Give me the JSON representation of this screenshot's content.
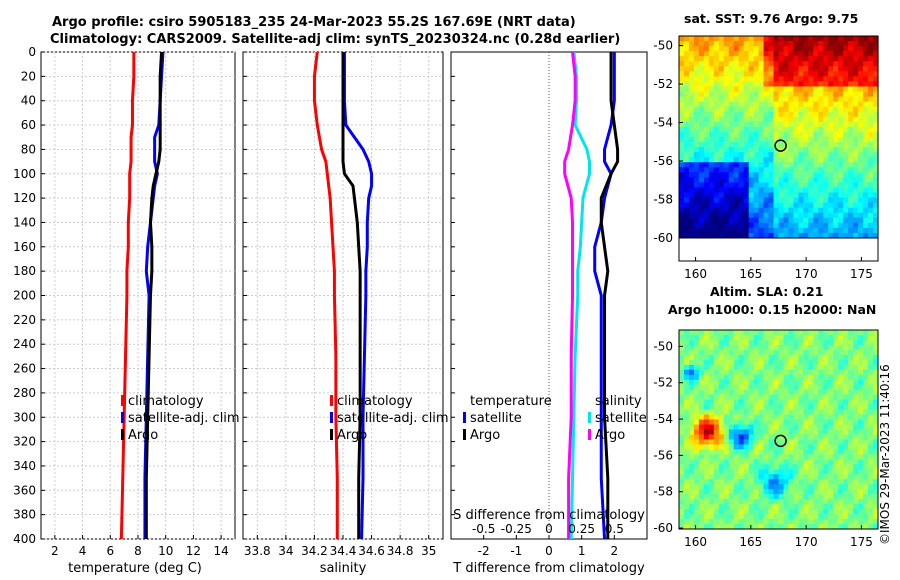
{
  "header": {
    "line1": "Argo profile: csiro 5905183_235 24-Mar-2023 55.2S 167.69E (NRT data)",
    "line2": "Climatology: CARS2009. Satellite-adj clim: synTS_20230324.nc (0.28d earlier)"
  },
  "maps": {
    "sst_title": "sat. SST: 9.76 Argo: 9.75",
    "sla_title1": "Altim. SLA: 0.21",
    "sla_title2": "Argo h1000: 0.15 h2000: NaN",
    "lat_ticks": [
      "-50",
      "-52",
      "-54",
      "-56",
      "-58",
      "-60"
    ],
    "lon_ticks": [
      "160",
      "165",
      "170",
      "175"
    ],
    "float_lon": 167.69,
    "float_lat": -55.2
  },
  "credit": "©IMOS 29-Mar-2023 11:40:16",
  "colors": {
    "climatology": "#ff0000",
    "satellite": "#0000ff",
    "argo": "#000000",
    "sat_diff_T": "#0000ff",
    "sat_diff_S": "#00e5ee",
    "argo_diff_S": "#ff00ff"
  },
  "chart_data": [
    {
      "type": "line",
      "xlabel": "temperature (deg C)",
      "ylabel": "",
      "xlim": [
        1,
        15
      ],
      "ylim": [
        400,
        0
      ],
      "xticks": [
        "2",
        "4",
        "6",
        "8",
        "10",
        "12",
        "14"
      ],
      "yticks": [
        "0",
        "20",
        "40",
        "60",
        "80",
        "100",
        "120",
        "140",
        "160",
        "180",
        "200",
        "220",
        "240",
        "260",
        "280",
        "300",
        "320",
        "340",
        "360",
        "380",
        "400"
      ],
      "grid": true,
      "legend": [
        "climatology",
        "satellite-adj. clim",
        "Argo"
      ],
      "depth": [
        0,
        20,
        40,
        60,
        70,
        80,
        90,
        100,
        110,
        120,
        140,
        160,
        180,
        200,
        250,
        300,
        350,
        400
      ],
      "series": [
        {
          "name": "climatology",
          "values": [
            7.7,
            7.7,
            7.6,
            7.6,
            7.5,
            7.5,
            7.5,
            7.4,
            7.4,
            7.4,
            7.3,
            7.3,
            7.2,
            7.2,
            7.1,
            7.0,
            6.9,
            6.8
          ]
        },
        {
          "name": "satellite-adj. clim",
          "values": [
            9.8,
            9.7,
            9.6,
            9.5,
            9.2,
            9.2,
            9.2,
            9.4,
            9.2,
            9.1,
            8.9,
            8.7,
            8.6,
            8.8,
            8.7,
            8.6,
            8.5,
            8.5
          ]
        },
        {
          "name": "Argo",
          "values": [
            9.7,
            9.6,
            9.6,
            9.6,
            9.6,
            9.6,
            9.5,
            9.3,
            9.1,
            9.0,
            8.9,
            9.0,
            9.0,
            8.9,
            8.8,
            8.7,
            8.6,
            8.6
          ]
        }
      ]
    },
    {
      "type": "line",
      "xlabel": "salinity",
      "xlim": [
        33.7,
        35.1
      ],
      "ylim": [
        400,
        0
      ],
      "xticks": [
        "33.8",
        "34",
        "34.2",
        "34.4",
        "34.6",
        "34.8",
        "35"
      ],
      "grid": true,
      "legend": [
        "climatology",
        "satellite-adj. clim",
        "Argo"
      ],
      "depth": [
        0,
        20,
        40,
        60,
        80,
        90,
        100,
        110,
        120,
        140,
        160,
        180,
        200,
        250,
        300,
        350,
        400
      ],
      "series": [
        {
          "name": "climatology",
          "values": [
            34.22,
            34.2,
            34.2,
            34.22,
            34.25,
            34.28,
            34.29,
            34.3,
            34.31,
            34.32,
            34.33,
            34.34,
            34.34,
            34.35,
            34.35,
            34.36,
            34.36
          ]
        },
        {
          "name": "satellite-adj. clim",
          "values": [
            34.41,
            34.41,
            34.41,
            34.42,
            34.54,
            34.58,
            34.6,
            34.6,
            34.58,
            34.57,
            34.57,
            34.56,
            34.56,
            34.55,
            34.54,
            34.54,
            34.53
          ]
        },
        {
          "name": "Argo",
          "values": [
            34.4,
            34.4,
            34.4,
            34.4,
            34.4,
            34.4,
            34.41,
            34.47,
            34.48,
            34.5,
            34.51,
            34.52,
            34.52,
            34.52,
            34.52,
            34.51,
            34.51
          ]
        }
      ]
    },
    {
      "type": "line",
      "xlabel": "T difference from climatology",
      "top_axis_label": "S difference from climatology",
      "xlim": [
        -3,
        3
      ],
      "ylim": [
        400,
        0
      ],
      "xticks": [
        "-2",
        "-1",
        "0",
        "1",
        "2"
      ],
      "top_ticks": [
        "-0.5",
        "-0.25",
        "0",
        "0.25",
        "0.5"
      ],
      "top_xlim": [
        -0.75,
        0.75
      ],
      "grid": false,
      "legend_left_title": "temperature",
      "legend_right_title": "salinity",
      "legend_left": [
        "satellite",
        "Argo"
      ],
      "legend_right": [
        "satellite",
        "Argo"
      ],
      "depth": [
        0,
        20,
        40,
        60,
        80,
        90,
        100,
        120,
        140,
        160,
        180,
        200,
        250,
        300,
        350,
        400
      ],
      "series": [
        {
          "name": "temperature satellite",
          "axis": "T",
          "values": [
            2.0,
            2.0,
            2.0,
            1.9,
            1.7,
            1.7,
            1.9,
            1.7,
            1.6,
            1.4,
            1.4,
            1.6,
            1.6,
            1.6,
            1.6,
            1.7
          ]
        },
        {
          "name": "temperature Argo",
          "axis": "T",
          "values": [
            1.9,
            1.9,
            1.9,
            2.0,
            2.1,
            2.1,
            1.9,
            1.6,
            1.6,
            1.7,
            1.8,
            1.7,
            1.7,
            1.7,
            1.8,
            1.8
          ]
        },
        {
          "name": "salinity satellite",
          "axis": "S",
          "values": [
            0.19,
            0.21,
            0.21,
            0.2,
            0.29,
            0.31,
            0.31,
            0.26,
            0.25,
            0.24,
            0.22,
            0.22,
            0.2,
            0.19,
            0.18,
            0.17
          ]
        },
        {
          "name": "salinity Argo",
          "axis": "S",
          "values": [
            0.18,
            0.2,
            0.2,
            0.18,
            0.15,
            0.12,
            0.12,
            0.17,
            0.18,
            0.18,
            0.18,
            0.18,
            0.17,
            0.17,
            0.15,
            0.15
          ]
        }
      ]
    }
  ]
}
